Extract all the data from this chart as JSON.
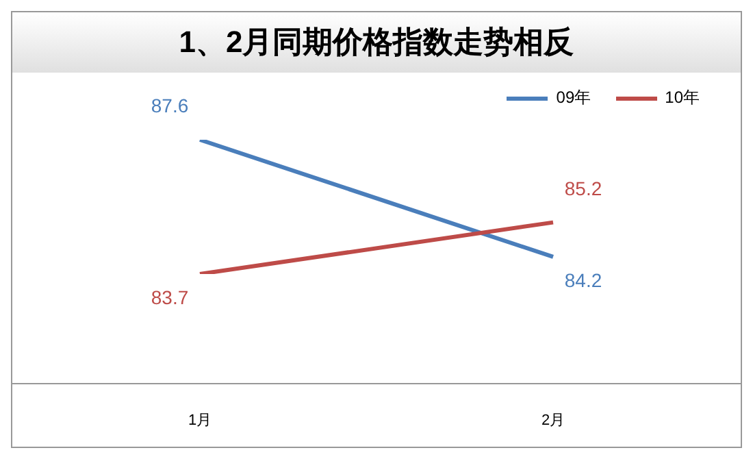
{
  "chart_data": {
    "type": "line",
    "title": "1、2月同期价格指数走势相反",
    "categories": [
      "1月",
      "2月"
    ],
    "series": [
      {
        "name": "09年",
        "color": "#4a7ebb",
        "values": [
          87.6,
          84.2
        ]
      },
      {
        "name": "10年",
        "color": "#be4b48",
        "values": [
          83.7,
          85.2
        ]
      }
    ],
    "tick_labels": "x",
    "data_labels": true,
    "legend": "top right",
    "marker": "none"
  }
}
